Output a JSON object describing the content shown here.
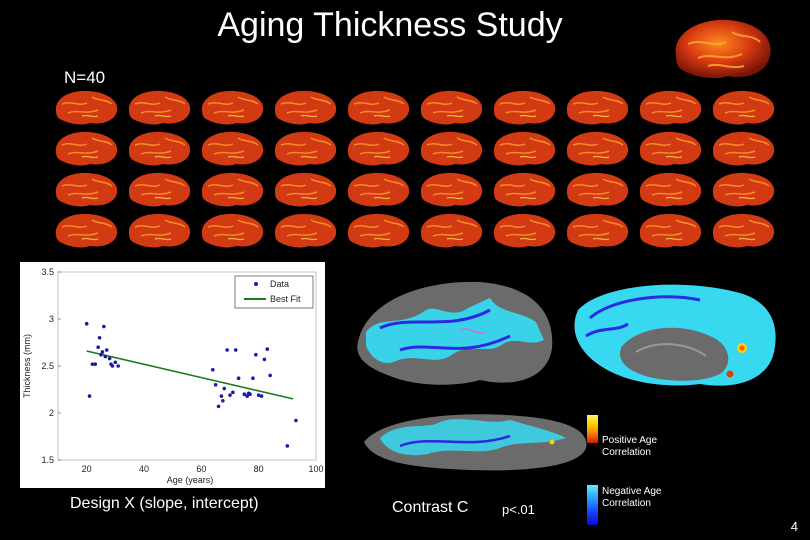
{
  "slide": {
    "title": "Aging Thickness Study",
    "n_label": "N=40",
    "page_number": "4"
  },
  "thumbnails": {
    "rows": 4,
    "cols": 10
  },
  "plot": {
    "ylabel": "Thickness (mm)",
    "xlabel": "Age (years)",
    "legend_data": "Data",
    "legend_fit": "Best Fit"
  },
  "legend_colorbars": {
    "positive": "Positive Age Correlation",
    "negative": "Negative Age Correlation"
  },
  "captions": {
    "design": "Design X (slope, intercept)",
    "contrast": "Contrast C",
    "pvalue": "p<.01"
  },
  "colors": {
    "background": "#000000",
    "data_points": "#1a1aa8",
    "best_fit": "#1a7a1a",
    "cortex_red": "#d23a14",
    "negative_cyan": "#38d8f0",
    "positive_yellow": "#ffd000"
  },
  "chart_data": {
    "type": "scatter",
    "xlabel": "Age (years)",
    "ylabel": "Thickness (mm)",
    "xlim": [
      10,
      100
    ],
    "ylim": [
      1.5,
      3.5
    ],
    "x_ticks": [
      20,
      40,
      60,
      80,
      100
    ],
    "y_ticks": [
      1.5,
      2,
      2.5,
      3,
      3.5
    ],
    "legend": "top-right",
    "series": [
      {
        "name": "Data",
        "points": [
          [
            20,
            2.95
          ],
          [
            22,
            2.52
          ],
          [
            21,
            2.18
          ],
          [
            23,
            2.52
          ],
          [
            24,
            2.7
          ],
          [
            24.5,
            2.8
          ],
          [
            25,
            2.62
          ],
          [
            25.5,
            2.65
          ],
          [
            26,
            2.92
          ],
          [
            26.5,
            2.6
          ],
          [
            27,
            2.67
          ],
          [
            28,
            2.58
          ],
          [
            28.5,
            2.52
          ],
          [
            29,
            2.5
          ],
          [
            30,
            2.54
          ],
          [
            31,
            2.5
          ],
          [
            64,
            2.46
          ],
          [
            65,
            2.3
          ],
          [
            66,
            2.07
          ],
          [
            67,
            2.18
          ],
          [
            67.5,
            2.13
          ],
          [
            68,
            2.26
          ],
          [
            69,
            2.67
          ],
          [
            70,
            2.19
          ],
          [
            71,
            2.22
          ],
          [
            72,
            2.67
          ],
          [
            73,
            2.37
          ],
          [
            75,
            2.2
          ],
          [
            76,
            2.18
          ],
          [
            76.5,
            2.21
          ],
          [
            77,
            2.2
          ],
          [
            78,
            2.37
          ],
          [
            79,
            2.62
          ],
          [
            80,
            2.19
          ],
          [
            81,
            2.18
          ],
          [
            82,
            2.57
          ],
          [
            83,
            2.68
          ],
          [
            84,
            2.4
          ],
          [
            90,
            1.65
          ],
          [
            93,
            1.92
          ]
        ]
      },
      {
        "name": "Best Fit",
        "line": [
          [
            20,
            2.66
          ],
          [
            92,
            2.15
          ]
        ]
      }
    ]
  }
}
